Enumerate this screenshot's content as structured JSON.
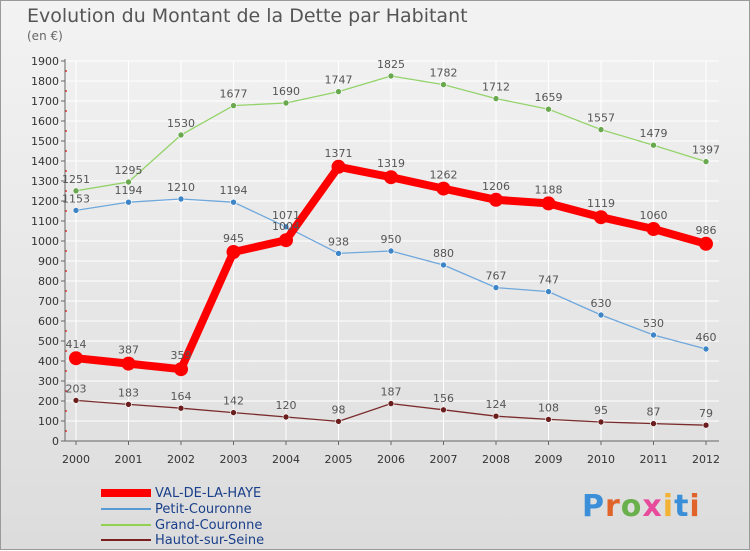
{
  "header": {
    "title": "Evolution du Montant de la Dette par Habitant",
    "subtitle": "(en €)"
  },
  "brand": {
    "text": "Proxiti",
    "colors": [
      "#3a8fd8",
      "#e0632a",
      "#6ab04c",
      "#e84a9c",
      "#f2b233",
      "#3a8fd8",
      "#e0632a"
    ]
  },
  "chart_data": {
    "type": "line",
    "title": "Evolution du Montant de la Dette par Habitant",
    "subtitle": "(en €)",
    "x": [
      "2000",
      "2001",
      "2002",
      "2003",
      "2004",
      "2005",
      "2006",
      "2007",
      "2008",
      "2009",
      "2010",
      "2011",
      "2012"
    ],
    "ylim": [
      0,
      1900
    ],
    "yticks": [
      0,
      100,
      200,
      300,
      400,
      500,
      600,
      700,
      800,
      900,
      1000,
      1100,
      1200,
      1300,
      1400,
      1500,
      1600,
      1700,
      1800,
      1900
    ],
    "grid": true,
    "legend_position": "bottom-left",
    "series": [
      {
        "name": "VAL-DE-LA-HAYE",
        "color": "#ff0000",
        "values": [
          414,
          387,
          359,
          945,
          1004,
          1371,
          1319,
          1262,
          1206,
          1188,
          1119,
          1060,
          986
        ],
        "labels": [
          "414",
          "387",
          "359",
          "945",
          "1004",
          "1371",
          "1319",
          "1262",
          "1206",
          "1188",
          "1119",
          "1060",
          "986"
        ]
      },
      {
        "name": "Petit-Couronne",
        "color": "#5b9bd5",
        "values": [
          1153,
          1194,
          1210,
          1194,
          1071,
          938,
          950,
          880,
          767,
          747,
          630,
          530,
          460
        ],
        "labels": [
          "1153",
          "1194",
          "1210",
          "1194",
          "1071",
          "938",
          "950",
          "880",
          "767",
          "747",
          "630",
          "530",
          "460"
        ]
      },
      {
        "name": "Grand-Couronne",
        "color": "#92d050",
        "values": [
          1251,
          1295,
          1530,
          1677,
          1690,
          1747,
          1825,
          1782,
          1712,
          1659,
          1557,
          1479,
          1397
        ],
        "labels": [
          "1251",
          "1295",
          "1530",
          "1677",
          "1690",
          "1747",
          "1825",
          "1782",
          "1712",
          "1659",
          "1557",
          "1479",
          "1397"
        ]
      },
      {
        "name": "Hautot-sur-Seine",
        "color": "#7b2020",
        "values": [
          203,
          183,
          164,
          142,
          120,
          98,
          187,
          156,
          124,
          108,
          95,
          87,
          79
        ],
        "labels": [
          "203",
          "183",
          "164",
          "142",
          "120",
          "98",
          "187",
          "156",
          "124",
          "108",
          "95",
          "87",
          "79"
        ]
      }
    ]
  }
}
